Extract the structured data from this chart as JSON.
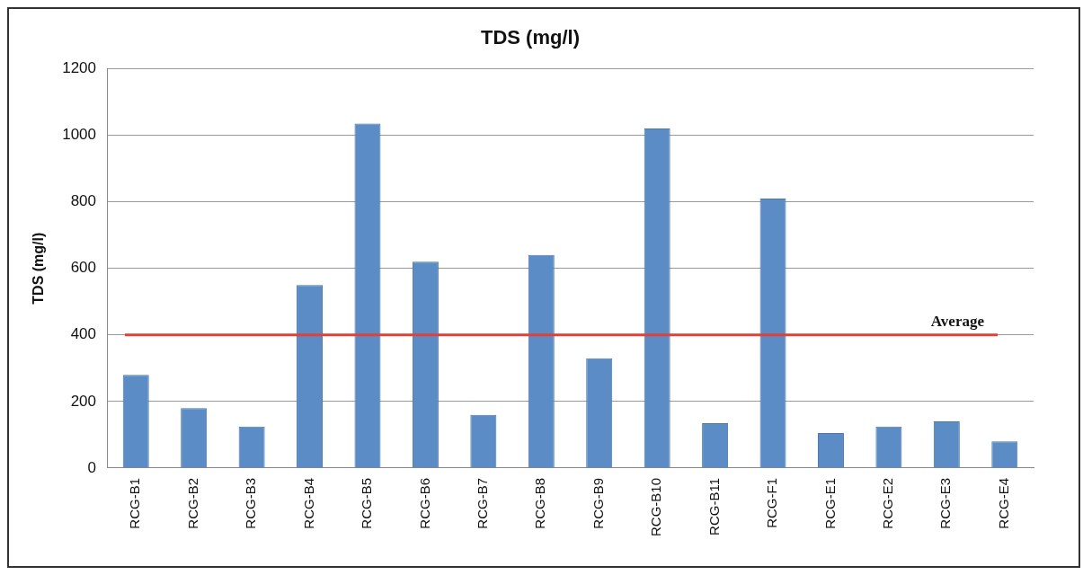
{
  "chart_data": {
    "type": "bar",
    "title": "TDS (mg/l)",
    "ylabel": "TDS (mg/l)",
    "categories": [
      "RCG-B1",
      "RCG-B2",
      "RCG-B3",
      "RCG-B4",
      "RCG-B5",
      "RCG-B6",
      "RCG-B7",
      "RCG-B8",
      "RCG-B9",
      "RCG-B10",
      "RCG-B11",
      "RCG-F1",
      "RCG-E1",
      "RCG-E2",
      "RCG-E3",
      "RCG-E4"
    ],
    "values": [
      280,
      180,
      125,
      550,
      1035,
      620,
      160,
      640,
      330,
      1020,
      135,
      810,
      105,
      125,
      140,
      80
    ],
    "color": "#5b8cc6",
    "ylim": [
      0,
      1200
    ],
    "yticks": [
      0,
      200,
      400,
      600,
      800,
      1000,
      1200
    ],
    "grid": "y",
    "ref_lines": [
      {
        "axis": "y",
        "value": 400,
        "label": "Average",
        "color": "#e0403a"
      }
    ]
  }
}
